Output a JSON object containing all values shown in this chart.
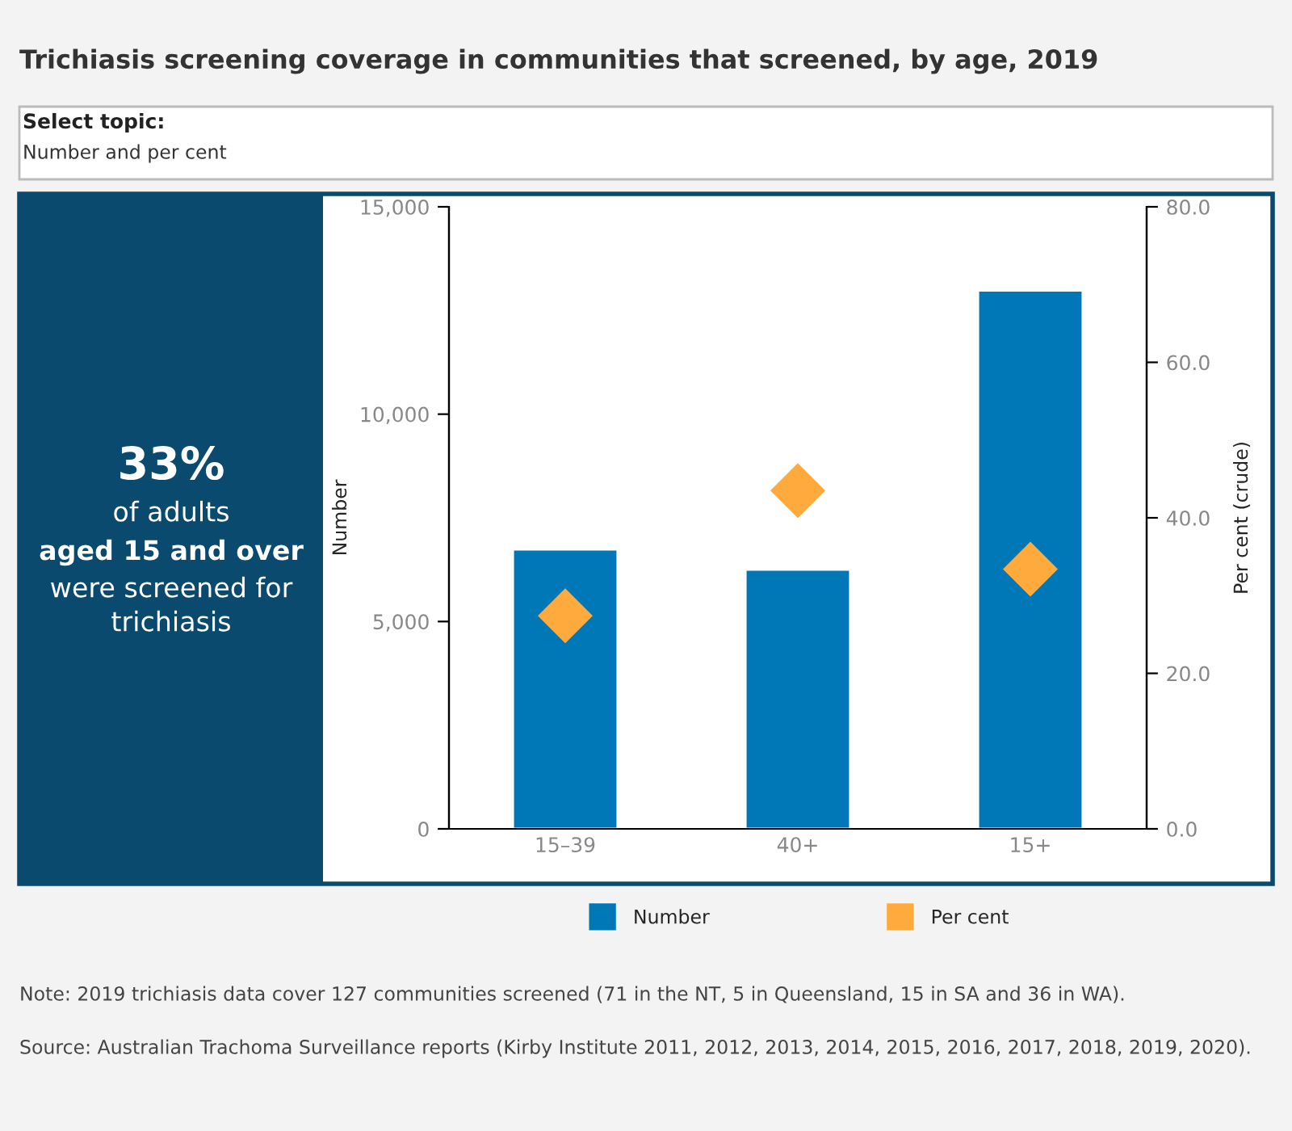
{
  "chart_data": {
    "type": "bar",
    "title": "Trichiasis screening coverage in communities that screened, by age, 2019",
    "categories": [
      "15–39",
      "40+",
      "15+"
    ],
    "series": [
      {
        "name": "Number",
        "color": "#0077b6",
        "values": [
          6740,
          6250,
          12980
        ]
      },
      {
        "name": "Per cent",
        "type": "scatter",
        "axis": "y2",
        "color": "#ffaa3c",
        "values": [
          27.4,
          43.5,
          33.4
        ]
      }
    ],
    "ylabel": "Number",
    "y2label": "Per cent (crude)",
    "ylim": [
      0,
      15000
    ],
    "yticks": [
      0,
      {
        "value": 5000,
        "label": "5,000"
      },
      {
        "value": 10000,
        "label": "10,000"
      },
      {
        "value": 15000,
        "label": "15,000"
      }
    ],
    "y2lim": [
      0,
      80
    ],
    "y2ticks": [
      {
        "value": 0,
        "label": "0.0"
      },
      {
        "value": 20,
        "label": "20.0"
      },
      {
        "value": 40,
        "label": "40.0"
      },
      {
        "value": 60,
        "label": "60.0"
      },
      {
        "value": 80,
        "label": "80.0"
      }
    ],
    "marker": "diamond",
    "legend": "bottom",
    "annotations": [
      "Select topic:",
      "Number and per cent",
      "33%",
      "of adults",
      "aged 15 and over",
      "were screened for",
      "trichiasis",
      "Note: 2019 trichiasis data cover 127 communities screened (71 in the NT, 5 in Queensland, 15 in SA and 36 in WA).",
      "Source: Australian Trachoma Surveillance reports (Kirby Institute 2011, 2012, 2013, 2014, 2015, 2016, 2017, 2018, 2019, 2020)."
    ]
  }
}
